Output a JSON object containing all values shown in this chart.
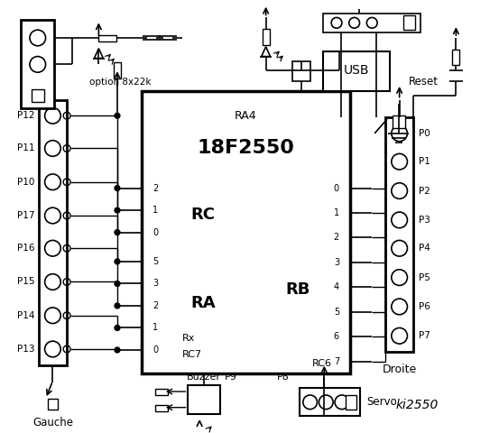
{
  "title": "ki2550",
  "bg_color": "#ffffff",
  "ic_label": "18F2550",
  "ic_sublabel": "RA4",
  "rc_label": "RC",
  "ra_label": "RA",
  "rb_label": "RB",
  "rc_pins": [
    "2",
    "1",
    "0"
  ],
  "ra_pins": [
    "5",
    "3",
    "2",
    "1",
    "0"
  ],
  "rb_pins": [
    "0",
    "1",
    "2",
    "3",
    "4",
    "5",
    "6",
    "7"
  ],
  "left_labels": [
    "P12",
    "P11",
    "P10",
    "P17",
    "P16",
    "P15",
    "P14",
    "P13"
  ],
  "right_labels": [
    "P0",
    "P1",
    "P2",
    "P3",
    "P4",
    "P5",
    "P6",
    "P7"
  ],
  "gauche_label": "Gauche",
  "droite_label": "Droite",
  "option_label": "option 8x22k",
  "reset_label": "Reset",
  "usb_label": "USB",
  "buzzer_label": "Buzzer",
  "p9_label": "P9",
  "p8_label": "P8",
  "servo_label": "Servo",
  "rx_label": "Rx",
  "rc7_label": "RC7",
  "rc6_label": "RC6"
}
